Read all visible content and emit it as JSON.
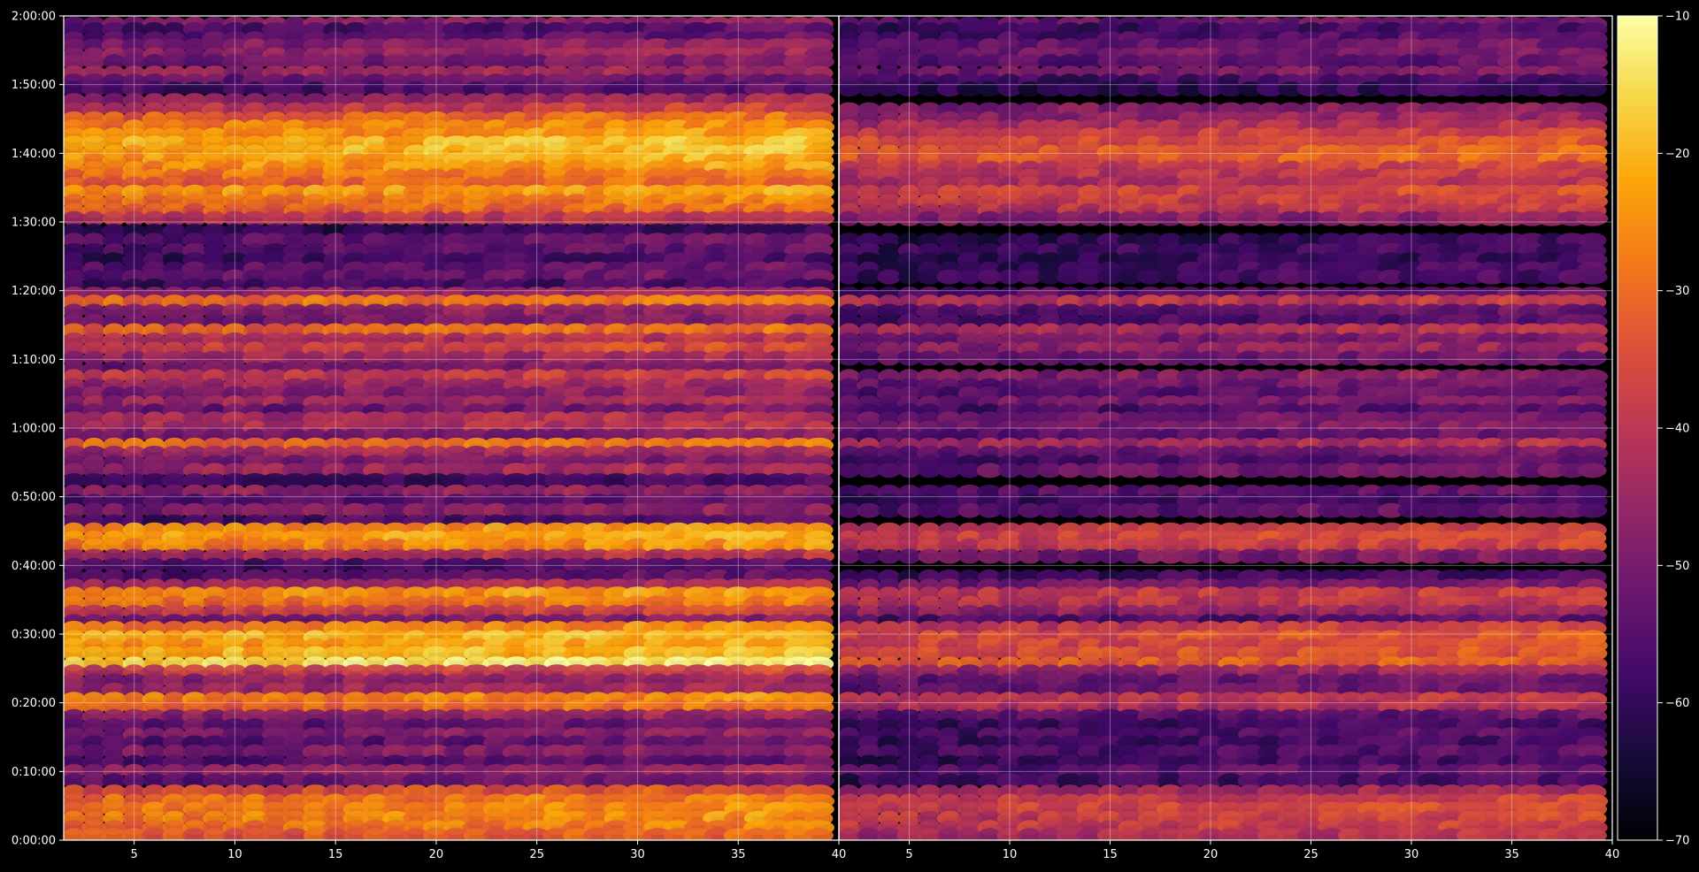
{
  "chart_data": {
    "type": "heatmap",
    "title": "",
    "xlabel": "",
    "ylabel": "",
    "colormap": "inferno",
    "colorbar": {
      "min": -70,
      "max": -10,
      "ticks": [
        "-10",
        "-20",
        "-30",
        "-40",
        "-50",
        "-60",
        "-70"
      ]
    },
    "y_ticks": [
      "2:00:00",
      "1:50:00",
      "1:40:00",
      "1:30:00",
      "1:20:00",
      "1:10:00",
      "1:00:00",
      "0:50:00",
      "0:40:00",
      "0:30:00",
      "0:20:00",
      "0:10:00",
      "0:00:00"
    ],
    "ylim_seconds": [
      0,
      7200
    ],
    "grid": true,
    "panels": [
      {
        "name": "left",
        "x_ticks": [
          "5",
          "10",
          "15",
          "20",
          "25",
          "30",
          "35",
          "40"
        ],
        "xlim": [
          1.5,
          40
        ],
        "column_range": [
          2,
          39
        ],
        "bands": [
          {
            "t": 7130,
            "v": -50
          },
          {
            "t": 7080,
            "v": -58
          },
          {
            "t": 7000,
            "v": -56
          },
          {
            "t": 6940,
            "v": -50
          },
          {
            "t": 6860,
            "v": -48
          },
          {
            "t": 6800,
            "v": -52
          },
          {
            "t": 6700,
            "v": -46
          },
          {
            "t": 6630,
            "v": -55
          },
          {
            "t": 6560,
            "v": -58
          },
          {
            "t": 6460,
            "v": -47
          },
          {
            "t": 6380,
            "v": -40
          },
          {
            "t": 6300,
            "v": -32
          },
          {
            "t": 6230,
            "v": -28
          },
          {
            "t": 6160,
            "v": -26
          },
          {
            "t": 6090,
            "v": -22
          },
          {
            "t": 6010,
            "v": -22
          },
          {
            "t": 5940,
            "v": -24
          },
          {
            "t": 5870,
            "v": -26
          },
          {
            "t": 5800,
            "v": -30
          },
          {
            "t": 5730,
            "v": -33
          },
          {
            "t": 5660,
            "v": -25
          },
          {
            "t": 5580,
            "v": -30
          },
          {
            "t": 5500,
            "v": -33
          },
          {
            "t": 5430,
            "v": -42
          },
          {
            "t": 5320,
            "v": -62
          },
          {
            "t": 5240,
            "v": -55
          },
          {
            "t": 5150,
            "v": -56
          },
          {
            "t": 5070,
            "v": -60
          },
          {
            "t": 4990,
            "v": -55
          },
          {
            "t": 4920,
            "v": -54
          },
          {
            "t": 4840,
            "v": -60
          },
          {
            "t": 4770,
            "v": -48
          },
          {
            "t": 4700,
            "v": -30
          },
          {
            "t": 4620,
            "v": -48
          },
          {
            "t": 4530,
            "v": -52
          },
          {
            "t": 4450,
            "v": -32
          },
          {
            "t": 4370,
            "v": -44
          },
          {
            "t": 4290,
            "v": -38
          },
          {
            "t": 4210,
            "v": -46
          },
          {
            "t": 4120,
            "v": -52
          },
          {
            "t": 4050,
            "v": -40
          },
          {
            "t": 3970,
            "v": -46
          },
          {
            "t": 3900,
            "v": -50
          },
          {
            "t": 3820,
            "v": -46
          },
          {
            "t": 3750,
            "v": -54
          },
          {
            "t": 3680,
            "v": -44
          },
          {
            "t": 3600,
            "v": -44
          },
          {
            "t": 3530,
            "v": -52
          },
          {
            "t": 3450,
            "v": -30
          },
          {
            "t": 3380,
            "v": -46
          },
          {
            "t": 3300,
            "v": -52
          },
          {
            "t": 3230,
            "v": -46
          },
          {
            "t": 3140,
            "v": -60
          },
          {
            "t": 3040,
            "v": -48
          },
          {
            "t": 2960,
            "v": -56
          },
          {
            "t": 2880,
            "v": -50
          },
          {
            "t": 2780,
            "v": -58
          },
          {
            "t": 2710,
            "v": -26
          },
          {
            "t": 2640,
            "v": -24
          },
          {
            "t": 2570,
            "v": -28
          },
          {
            "t": 2480,
            "v": -44
          },
          {
            "t": 2400,
            "v": -58
          },
          {
            "t": 2300,
            "v": -56
          },
          {
            "t": 2220,
            "v": -44
          },
          {
            "t": 2150,
            "v": -26
          },
          {
            "t": 2070,
            "v": -30
          },
          {
            "t": 1990,
            "v": -40
          },
          {
            "t": 1910,
            "v": -52
          },
          {
            "t": 1850,
            "v": -28
          },
          {
            "t": 1770,
            "v": -22
          },
          {
            "t": 1700,
            "v": -25
          },
          {
            "t": 1630,
            "v": -22
          },
          {
            "t": 1540,
            "v": -16
          },
          {
            "t": 1470,
            "v": -40
          },
          {
            "t": 1390,
            "v": -48
          },
          {
            "t": 1310,
            "v": -46
          },
          {
            "t": 1230,
            "v": -28
          },
          {
            "t": 1160,
            "v": -32
          },
          {
            "t": 1080,
            "v": -48
          },
          {
            "t": 1000,
            "v": -55
          },
          {
            "t": 920,
            "v": -50
          },
          {
            "t": 850,
            "v": -56
          },
          {
            "t": 770,
            "v": -50
          },
          {
            "t": 680,
            "v": -56
          },
          {
            "t": 600,
            "v": -48
          },
          {
            "t": 520,
            "v": -54
          },
          {
            "t": 420,
            "v": -36
          },
          {
            "t": 340,
            "v": -30
          },
          {
            "t": 270,
            "v": -28
          },
          {
            "t": 190,
            "v": -28
          },
          {
            "t": 110,
            "v": -30
          },
          {
            "t": 40,
            "v": -34
          }
        ]
      },
      {
        "name": "right",
        "x_ticks": [
          "5",
          "10",
          "15",
          "20",
          "25",
          "30",
          "35",
          "40"
        ],
        "xlim": [
          1.5,
          40
        ],
        "column_range": [
          2,
          39
        ],
        "bands": [
          {
            "t": 7130,
            "v": -54
          },
          {
            "t": 7080,
            "v": -60
          },
          {
            "t": 7000,
            "v": -58
          },
          {
            "t": 6940,
            "v": -54
          },
          {
            "t": 6860,
            "v": -52
          },
          {
            "t": 6800,
            "v": -56
          },
          {
            "t": 6700,
            "v": -52
          },
          {
            "t": 6630,
            "v": -60
          },
          {
            "t": 6560,
            "v": -62
          },
          {
            "t": 6380,
            "v": -50
          },
          {
            "t": 6300,
            "v": -48
          },
          {
            "t": 6230,
            "v": -44
          },
          {
            "t": 6160,
            "v": -40
          },
          {
            "t": 6090,
            "v": -36
          },
          {
            "t": 6010,
            "v": -34
          },
          {
            "t": 5940,
            "v": -34
          },
          {
            "t": 5870,
            "v": -40
          },
          {
            "t": 5800,
            "v": -42
          },
          {
            "t": 5730,
            "v": -44
          },
          {
            "t": 5660,
            "v": -38
          },
          {
            "t": 5580,
            "v": -40
          },
          {
            "t": 5500,
            "v": -42
          },
          {
            "t": 5430,
            "v": -50
          },
          {
            "t": 5240,
            "v": -62
          },
          {
            "t": 5150,
            "v": -60
          },
          {
            "t": 5070,
            "v": -62
          },
          {
            "t": 4990,
            "v": -60
          },
          {
            "t": 4920,
            "v": -60
          },
          {
            "t": 4770,
            "v": -56
          },
          {
            "t": 4700,
            "v": -42
          },
          {
            "t": 4620,
            "v": -56
          },
          {
            "t": 4530,
            "v": -58
          },
          {
            "t": 4450,
            "v": -44
          },
          {
            "t": 4370,
            "v": -52
          },
          {
            "t": 4290,
            "v": -48
          },
          {
            "t": 4210,
            "v": -54
          },
          {
            "t": 4050,
            "v": -50
          },
          {
            "t": 3970,
            "v": -54
          },
          {
            "t": 3900,
            "v": -56
          },
          {
            "t": 3820,
            "v": -52
          },
          {
            "t": 3750,
            "v": -58
          },
          {
            "t": 3680,
            "v": -52
          },
          {
            "t": 3600,
            "v": -52
          },
          {
            "t": 3530,
            "v": -56
          },
          {
            "t": 3450,
            "v": -44
          },
          {
            "t": 3380,
            "v": -54
          },
          {
            "t": 3300,
            "v": -58
          },
          {
            "t": 3230,
            "v": -54
          },
          {
            "t": 3040,
            "v": -56
          },
          {
            "t": 2960,
            "v": -60
          },
          {
            "t": 2880,
            "v": -56
          },
          {
            "t": 2710,
            "v": -40
          },
          {
            "t": 2640,
            "v": -38
          },
          {
            "t": 2570,
            "v": -40
          },
          {
            "t": 2480,
            "v": -52
          },
          {
            "t": 2300,
            "v": -60
          },
          {
            "t": 2220,
            "v": -52
          },
          {
            "t": 2150,
            "v": -40
          },
          {
            "t": 2070,
            "v": -42
          },
          {
            "t": 1990,
            "v": -48
          },
          {
            "t": 1910,
            "v": -58
          },
          {
            "t": 1850,
            "v": -40
          },
          {
            "t": 1770,
            "v": -36
          },
          {
            "t": 1700,
            "v": -38
          },
          {
            "t": 1630,
            "v": -36
          },
          {
            "t": 1540,
            "v": -34
          },
          {
            "t": 1470,
            "v": -48
          },
          {
            "t": 1390,
            "v": -54
          },
          {
            "t": 1310,
            "v": -54
          },
          {
            "t": 1230,
            "v": -40
          },
          {
            "t": 1160,
            "v": -44
          },
          {
            "t": 1080,
            "v": -56
          },
          {
            "t": 1000,
            "v": -60
          },
          {
            "t": 920,
            "v": -58
          },
          {
            "t": 850,
            "v": -60
          },
          {
            "t": 770,
            "v": -58
          },
          {
            "t": 680,
            "v": -60
          },
          {
            "t": 600,
            "v": -56
          },
          {
            "t": 520,
            "v": -60
          },
          {
            "t": 420,
            "v": -46
          },
          {
            "t": 340,
            "v": -40
          },
          {
            "t": 270,
            "v": -38
          },
          {
            "t": 190,
            "v": -40
          },
          {
            "t": 110,
            "v": -40
          },
          {
            "t": 40,
            "v": -44
          }
        ]
      }
    ]
  }
}
